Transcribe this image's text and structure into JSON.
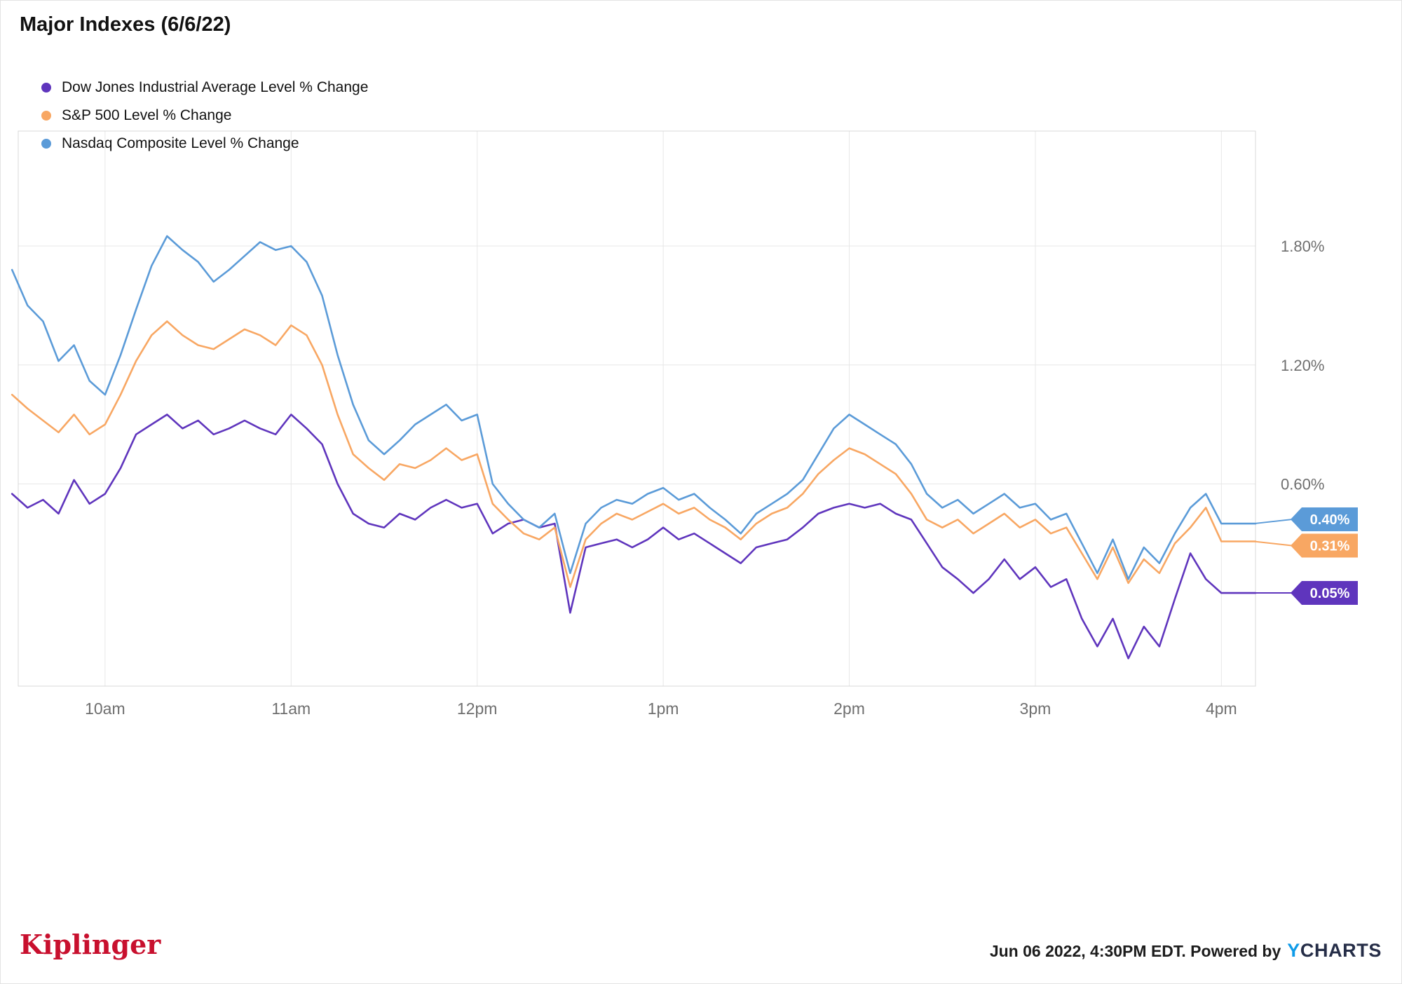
{
  "header": {
    "title": "Major Indexes (6/6/22)"
  },
  "colors": {
    "grid": "#e7e7e7",
    "border": "#d9d9d9",
    "axis_text": "#6f6f6f",
    "brand_red": "#c8102e",
    "ycharts_blue": "#0f9be8",
    "ycharts_dark": "#252d47"
  },
  "chart_data": {
    "type": "line",
    "title": "Major Indexes (6/6/22)",
    "xlabel": "",
    "ylabel": "",
    "legend_position": "top-left",
    "x_grid": true,
    "y_grid": true,
    "x_unit": "minutes-since-midnight",
    "x_domain_minutes": [
      572,
      971
    ],
    "x_start_minute": 570,
    "x_step_minutes": 5,
    "ylim": [
      -0.42,
      2.38
    ],
    "x_ticks": [
      {
        "minute": 600,
        "label": "10am"
      },
      {
        "minute": 660,
        "label": "11am"
      },
      {
        "minute": 720,
        "label": "12pm"
      },
      {
        "minute": 780,
        "label": "1pm"
      },
      {
        "minute": 840,
        "label": "2pm"
      },
      {
        "minute": 900,
        "label": "3pm"
      },
      {
        "minute": 960,
        "label": "4pm"
      }
    ],
    "y_ticks": [
      {
        "value": 0.6,
        "label": "0.60%"
      },
      {
        "value": 1.2,
        "label": "1.20%"
      },
      {
        "value": 1.8,
        "label": "1.80%"
      }
    ],
    "series": [
      {
        "id": "dow-jones",
        "name": "Dow Jones Industrial Average Level % Change",
        "color": "#5f35bd",
        "final_value": 0.05,
        "final_label": "0.05%",
        "values": [
          0.55,
          0.48,
          0.52,
          0.45,
          0.62,
          0.5,
          0.55,
          0.68,
          0.85,
          0.9,
          0.95,
          0.88,
          0.92,
          0.85,
          0.88,
          0.92,
          0.88,
          0.85,
          0.95,
          0.88,
          0.8,
          0.6,
          0.45,
          0.4,
          0.38,
          0.45,
          0.42,
          0.48,
          0.52,
          0.48,
          0.5,
          0.35,
          0.4,
          0.42,
          0.38,
          0.4,
          -0.05,
          0.28,
          0.3,
          0.32,
          0.28,
          0.32,
          0.38,
          0.32,
          0.35,
          0.3,
          0.25,
          0.2,
          0.28,
          0.3,
          0.32,
          0.38,
          0.45,
          0.48,
          0.5,
          0.48,
          0.5,
          0.45,
          0.42,
          0.3,
          0.18,
          0.12,
          0.05,
          0.12,
          0.22,
          0.12,
          0.18,
          0.08,
          0.12,
          -0.08,
          -0.22,
          -0.08,
          -0.28,
          -0.12,
          -0.22,
          0.02,
          0.25,
          0.12,
          0.05
        ]
      },
      {
        "id": "sp-500",
        "name": "S&P 500 Level % Change",
        "color": "#f8a763",
        "final_value": 0.31,
        "final_label": "0.31%",
        "values": [
          1.05,
          0.98,
          0.92,
          0.86,
          0.95,
          0.85,
          0.9,
          1.05,
          1.22,
          1.35,
          1.42,
          1.35,
          1.3,
          1.28,
          1.33,
          1.38,
          1.35,
          1.3,
          1.4,
          1.35,
          1.2,
          0.95,
          0.75,
          0.68,
          0.62,
          0.7,
          0.68,
          0.72,
          0.78,
          0.72,
          0.75,
          0.5,
          0.42,
          0.35,
          0.32,
          0.38,
          0.08,
          0.32,
          0.4,
          0.45,
          0.42,
          0.46,
          0.5,
          0.45,
          0.48,
          0.42,
          0.38,
          0.32,
          0.4,
          0.45,
          0.48,
          0.55,
          0.65,
          0.72,
          0.78,
          0.75,
          0.7,
          0.65,
          0.55,
          0.42,
          0.38,
          0.42,
          0.35,
          0.4,
          0.45,
          0.38,
          0.42,
          0.35,
          0.38,
          0.25,
          0.12,
          0.28,
          0.1,
          0.22,
          0.15,
          0.3,
          0.38,
          0.48,
          0.31
        ]
      },
      {
        "id": "nasdaq",
        "name": "Nasdaq Composite Level % Change",
        "color": "#5b9bd8",
        "final_value": 0.4,
        "final_label": "0.40%",
        "values": [
          1.68,
          1.5,
          1.42,
          1.22,
          1.3,
          1.12,
          1.05,
          1.25,
          1.48,
          1.7,
          1.85,
          1.78,
          1.72,
          1.62,
          1.68,
          1.75,
          1.82,
          1.78,
          1.8,
          1.72,
          1.55,
          1.25,
          1.0,
          0.82,
          0.75,
          0.82,
          0.9,
          0.95,
          1.0,
          0.92,
          0.95,
          0.6,
          0.5,
          0.42,
          0.38,
          0.45,
          0.15,
          0.4,
          0.48,
          0.52,
          0.5,
          0.55,
          0.58,
          0.52,
          0.55,
          0.48,
          0.42,
          0.35,
          0.45,
          0.5,
          0.55,
          0.62,
          0.75,
          0.88,
          0.95,
          0.9,
          0.85,
          0.8,
          0.7,
          0.55,
          0.48,
          0.52,
          0.45,
          0.5,
          0.55,
          0.48,
          0.5,
          0.42,
          0.45,
          0.3,
          0.15,
          0.32,
          0.12,
          0.28,
          0.2,
          0.35,
          0.48,
          0.55,
          0.4
        ]
      }
    ]
  },
  "footer": {
    "brand": "Kiplinger",
    "note": "Jun 06 2022, 4:30PM EDT. Powered by",
    "ycharts_y": "Y",
    "ycharts_rest": "CHARTS"
  }
}
